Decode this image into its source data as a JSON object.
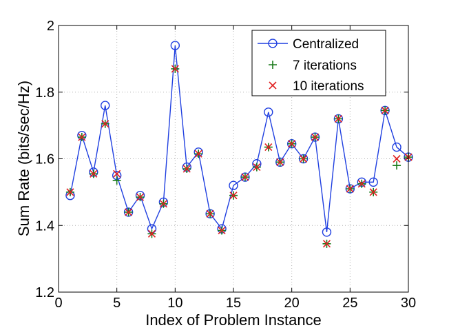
{
  "chart_data": {
    "type": "line",
    "xlabel": "Index of Problem Instance",
    "ylabel": "Sum Rate (bits/sec/Hz)",
    "xlim": [
      0,
      30
    ],
    "ylim": [
      1.2,
      2.0
    ],
    "xticks": [
      "0",
      "5",
      "10",
      "15",
      "20",
      "25",
      "30"
    ],
    "yticks": [
      "1.2",
      "1.4",
      "1.6",
      "1.8",
      "2"
    ],
    "grid": true,
    "legend_position": "top-right",
    "x": [
      1,
      2,
      3,
      4,
      5,
      6,
      7,
      8,
      9,
      10,
      11,
      12,
      13,
      14,
      15,
      16,
      17,
      18,
      19,
      20,
      21,
      22,
      23,
      24,
      25,
      26,
      27,
      28,
      29,
      30
    ],
    "series": [
      {
        "name": "Centralized",
        "style": "line-circle",
        "color": "#1f3fe0",
        "values": [
          1.49,
          1.67,
          1.56,
          1.76,
          1.55,
          1.44,
          1.49,
          1.39,
          1.47,
          1.94,
          1.575,
          1.62,
          1.435,
          1.39,
          1.52,
          1.545,
          1.585,
          1.74,
          1.59,
          1.645,
          1.6,
          1.665,
          1.38,
          1.72,
          1.51,
          1.53,
          1.53,
          1.745,
          1.635,
          1.605
        ]
      },
      {
        "name": "7 iterations",
        "style": "plus",
        "color": "#1a7a1a",
        "values": [
          1.5,
          1.665,
          1.555,
          1.705,
          1.535,
          1.44,
          1.485,
          1.375,
          1.465,
          1.87,
          1.57,
          1.615,
          1.435,
          1.385,
          1.49,
          1.545,
          1.575,
          1.635,
          1.59,
          1.645,
          1.6,
          1.665,
          1.345,
          1.72,
          1.51,
          1.525,
          1.5,
          1.745,
          1.58,
          1.605
        ]
      },
      {
        "name": "10 iterations",
        "style": "cross",
        "color": "#e02020",
        "values": [
          1.5,
          1.665,
          1.555,
          1.705,
          1.555,
          1.44,
          1.485,
          1.375,
          1.465,
          1.87,
          1.57,
          1.615,
          1.435,
          1.385,
          1.49,
          1.545,
          1.575,
          1.635,
          1.59,
          1.645,
          1.6,
          1.665,
          1.345,
          1.72,
          1.51,
          1.525,
          1.5,
          1.745,
          1.6,
          1.605
        ]
      }
    ]
  }
}
